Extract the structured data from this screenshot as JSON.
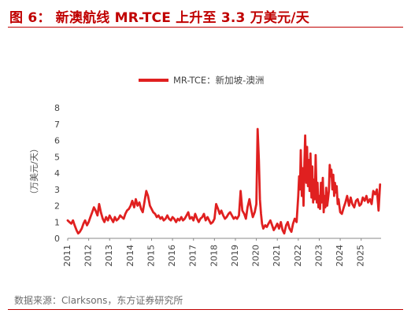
{
  "figure": {
    "title": "图 6： 新澳航线 MR-TCE 上升至 3.3 万美元/天",
    "source": "数据来源：Clarksons，东方证券研究所"
  },
  "colors": {
    "accent": "#c00000",
    "series": "#e02020"
  },
  "chart_data": {
    "type": "line",
    "title": "",
    "xlabel": "",
    "ylabel": "（万美元/天）",
    "ylim": [
      0,
      8
    ],
    "xlim": [
      2011.0,
      2025.95
    ],
    "yticks": [
      "0",
      "1",
      "2",
      "3",
      "4",
      "5",
      "6",
      "7",
      "8"
    ],
    "xticks": [
      "2011",
      "2012",
      "2013",
      "2014",
      "2015",
      "2016",
      "2017",
      "2018",
      "2019",
      "2020",
      "2021",
      "2022",
      "2023",
      "2024",
      "2025"
    ],
    "grid": false,
    "legend_position": "top-center",
    "series": [
      {
        "name": "MR-TCE：新加坡-澳洲",
        "x": [
          2011.0,
          2011.08,
          2011.17,
          2011.25,
          2011.33,
          2011.42,
          2011.5,
          2011.58,
          2011.67,
          2011.75,
          2011.83,
          2011.92,
          2012.0,
          2012.08,
          2012.17,
          2012.25,
          2012.33,
          2012.42,
          2012.5,
          2012.58,
          2012.67,
          2012.75,
          2012.83,
          2012.92,
          2013.0,
          2013.08,
          2013.17,
          2013.25,
          2013.33,
          2013.42,
          2013.5,
          2013.58,
          2013.67,
          2013.75,
          2013.83,
          2013.92,
          2014.0,
          2014.08,
          2014.17,
          2014.25,
          2014.33,
          2014.42,
          2014.5,
          2014.58,
          2014.67,
          2014.75,
          2014.83,
          2014.92,
          2015.0,
          2015.08,
          2015.17,
          2015.25,
          2015.33,
          2015.42,
          2015.5,
          2015.58,
          2015.67,
          2015.75,
          2015.83,
          2015.92,
          2016.0,
          2016.08,
          2016.17,
          2016.25,
          2016.33,
          2016.42,
          2016.5,
          2016.58,
          2016.67,
          2016.75,
          2016.83,
          2016.92,
          2017.0,
          2017.08,
          2017.17,
          2017.25,
          2017.33,
          2017.42,
          2017.5,
          2017.58,
          2017.67,
          2017.75,
          2017.83,
          2017.92,
          2018.0,
          2018.08,
          2018.17,
          2018.25,
          2018.33,
          2018.42,
          2018.5,
          2018.58,
          2018.67,
          2018.75,
          2018.83,
          2018.92,
          2019.0,
          2019.08,
          2019.17,
          2019.25,
          2019.33,
          2019.42,
          2019.5,
          2019.58,
          2019.67,
          2019.75,
          2019.83,
          2019.92,
          2020.0,
          2020.06,
          2020.12,
          2020.17,
          2020.22,
          2020.27,
          2020.33,
          2020.42,
          2020.5,
          2020.58,
          2020.67,
          2020.75,
          2020.83,
          2020.92,
          2021.0,
          2021.08,
          2021.17,
          2021.25,
          2021.33,
          2021.42,
          2021.5,
          2021.58,
          2021.67,
          2021.75,
          2021.83,
          2021.92,
          2022.0,
          2022.04,
          2022.08,
          2022.12,
          2022.17,
          2022.21,
          2022.25,
          2022.29,
          2022.33,
          2022.38,
          2022.42,
          2022.46,
          2022.5,
          2022.54,
          2022.58,
          2022.63,
          2022.67,
          2022.71,
          2022.75,
          2022.79,
          2022.83,
          2022.88,
          2022.92,
          2022.96,
          2023.0,
          2023.04,
          2023.08,
          2023.12,
          2023.17,
          2023.21,
          2023.25,
          2023.29,
          2023.33,
          2023.38,
          2023.42,
          2023.46,
          2023.5,
          2023.54,
          2023.58,
          2023.63,
          2023.67,
          2023.71,
          2023.75,
          2023.79,
          2023.83,
          2023.88,
          2023.92,
          2023.96,
          2024.0,
          2024.08,
          2024.17,
          2024.25,
          2024.33,
          2024.42,
          2024.5,
          2024.58,
          2024.67,
          2024.75,
          2024.83,
          2024.92,
          2025.0,
          2025.08,
          2025.17,
          2025.25,
          2025.33,
          2025.42,
          2025.5,
          2025.58,
          2025.67,
          2025.75,
          2025.83,
          2025.9
        ],
        "values": [
          1.1,
          1.0,
          0.9,
          1.1,
          0.8,
          0.5,
          0.3,
          0.4,
          0.6,
          0.9,
          1.1,
          0.8,
          1.0,
          1.3,
          1.6,
          1.9,
          1.7,
          1.4,
          2.1,
          1.6,
          1.2,
          1.0,
          1.3,
          1.1,
          1.4,
          1.2,
          1.0,
          1.3,
          1.1,
          1.2,
          1.4,
          1.3,
          1.2,
          1.5,
          1.7,
          1.8,
          2.0,
          2.3,
          1.9,
          2.4,
          2.0,
          2.2,
          1.8,
          1.6,
          2.3,
          2.9,
          2.6,
          2.0,
          1.8,
          1.6,
          1.5,
          1.3,
          1.4,
          1.2,
          1.3,
          1.1,
          1.2,
          1.4,
          1.2,
          1.1,
          1.3,
          1.2,
          1.0,
          1.2,
          1.1,
          1.3,
          1.1,
          1.2,
          1.4,
          1.6,
          1.2,
          1.3,
          1.1,
          1.5,
          1.2,
          1.0,
          1.2,
          1.3,
          1.5,
          1.1,
          1.3,
          1.1,
          0.9,
          1.0,
          1.2,
          2.1,
          1.8,
          1.5,
          1.7,
          1.4,
          1.2,
          1.3,
          1.5,
          1.6,
          1.4,
          1.2,
          1.3,
          1.2,
          1.4,
          2.9,
          1.7,
          1.5,
          1.2,
          1.9,
          2.4,
          1.8,
          1.3,
          1.6,
          2.1,
          6.7,
          4.8,
          2.4,
          1.5,
          0.9,
          0.6,
          0.8,
          0.7,
          0.9,
          1.1,
          0.8,
          0.5,
          0.7,
          0.9,
          0.6,
          1.0,
          0.5,
          0.3,
          0.8,
          1.0,
          0.6,
          0.4,
          0.9,
          1.2,
          1.0,
          2.6,
          3.8,
          3.0,
          5.4,
          2.6,
          4.3,
          2.0,
          4.6,
          6.3,
          3.4,
          5.6,
          3.2,
          4.8,
          2.9,
          5.2,
          2.5,
          4.4,
          2.2,
          3.6,
          2.4,
          5.1,
          2.2,
          3.4,
          1.9,
          2.6,
          1.8,
          3.4,
          2.2,
          3.7,
          1.6,
          2.6,
          1.9,
          3.1,
          2.0,
          2.4,
          2.9,
          4.5,
          3.8,
          4.2,
          3.0,
          3.9,
          2.6,
          3.4,
          2.8,
          3.2,
          2.1,
          2.4,
          2.0,
          1.6,
          1.5,
          1.9,
          2.2,
          2.6,
          2.0,
          2.5,
          2.1,
          1.9,
          2.3,
          2.4,
          2.0,
          2.1,
          2.5,
          2.3,
          2.6,
          2.2,
          2.4,
          2.1,
          2.9,
          2.7,
          3.0,
          1.7,
          3.3
        ]
      }
    ]
  }
}
